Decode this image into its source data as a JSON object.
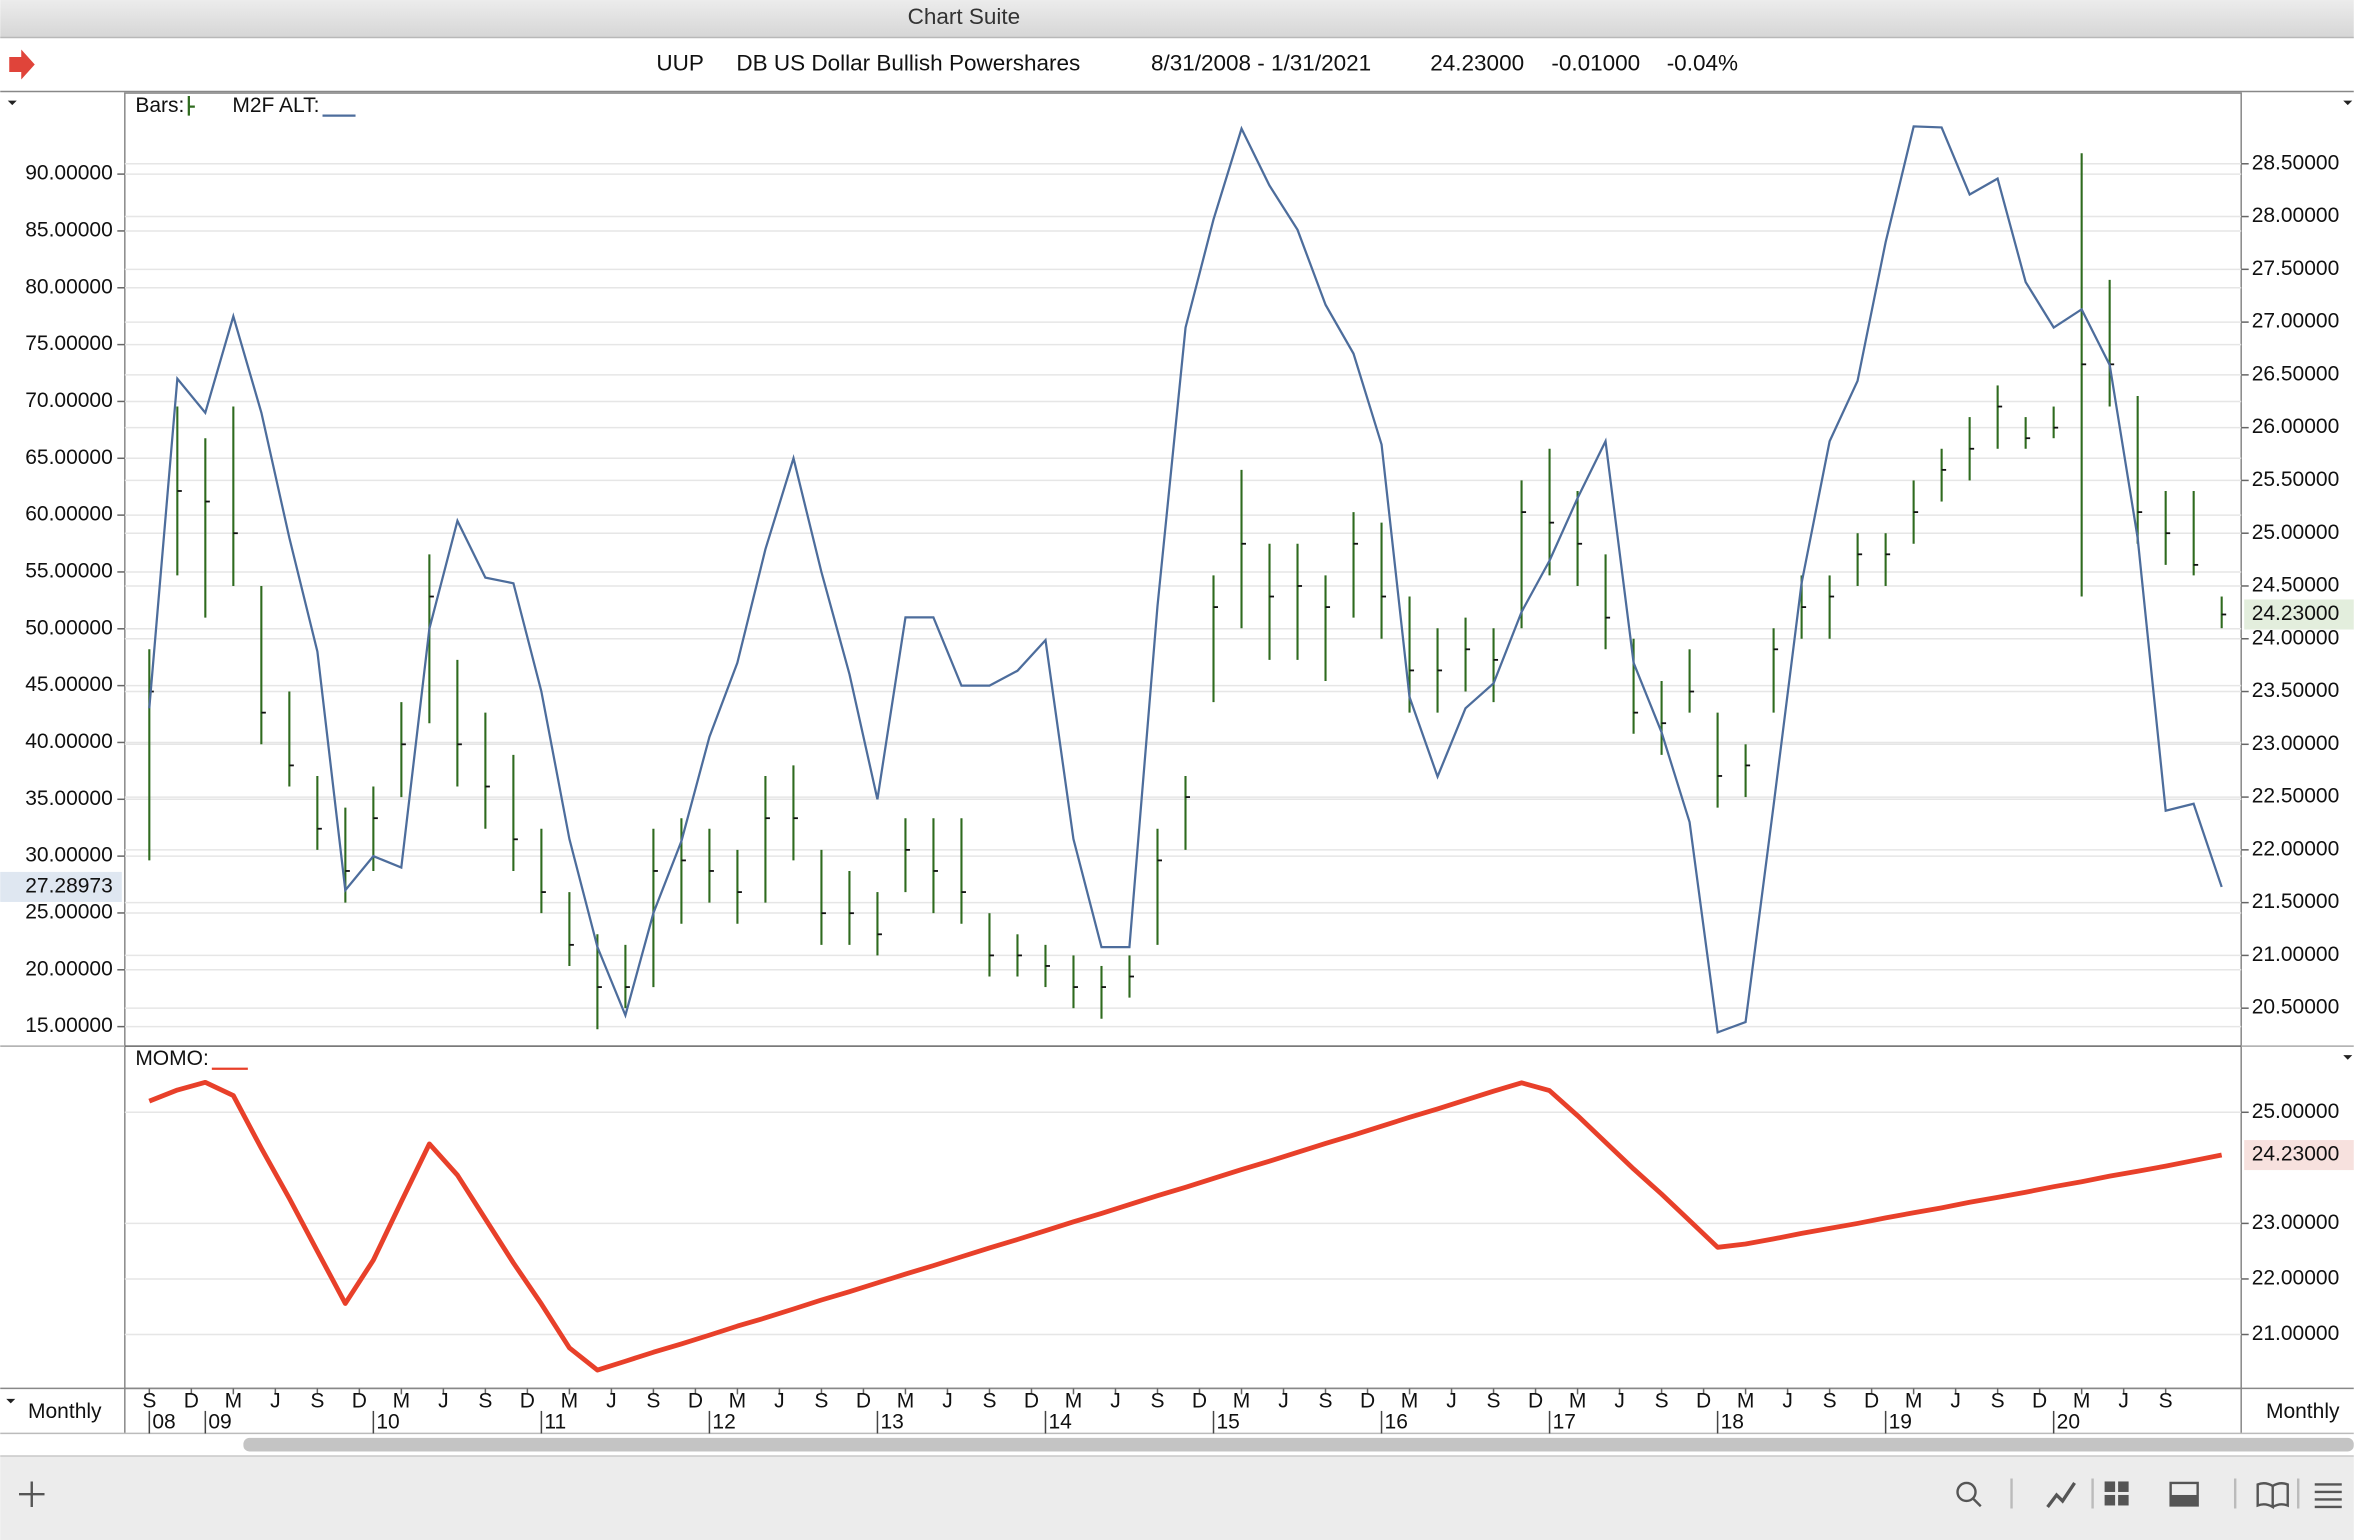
{
  "window": {
    "title": "Chart Suite"
  },
  "header": {
    "symbol": "UUP",
    "name": "DB US Dollar Bullish Powershares",
    "range": "8/31/2008 - 1/31/2021",
    "last": "24.23000",
    "change": "-0.01000",
    "change_pct": "-0.04%"
  },
  "period": "Monthly",
  "chart_data": [
    {
      "type": "ohlc",
      "xlim": [
        "2008-08",
        "2021-01"
      ],
      "x": [
        "2008-09",
        "2008-11",
        "2009-01",
        "2009-03",
        "2009-05",
        "2009-07",
        "2009-09",
        "2009-11",
        "2010-01",
        "2010-03",
        "2010-05",
        "2010-07",
        "2010-09",
        "2010-11",
        "2011-01",
        "2011-03",
        "2011-05",
        "2011-07",
        "2011-09",
        "2011-11",
        "2012-01",
        "2012-03",
        "2012-05",
        "2012-07",
        "2012-09",
        "2012-11",
        "2013-01",
        "2013-03",
        "2013-05",
        "2013-07",
        "2013-09",
        "2013-11",
        "2014-01",
        "2014-03",
        "2014-05",
        "2014-07",
        "2014-09",
        "2014-11",
        "2015-01",
        "2015-03",
        "2015-05",
        "2015-07",
        "2015-09",
        "2015-11",
        "2016-01",
        "2016-03",
        "2016-05",
        "2016-07",
        "2016-09",
        "2016-11",
        "2017-01",
        "2017-03",
        "2017-05",
        "2017-07",
        "2017-09",
        "2017-11",
        "2018-01",
        "2018-03",
        "2018-05",
        "2018-07",
        "2018-09",
        "2018-11",
        "2019-01",
        "2019-03",
        "2019-05",
        "2019-07",
        "2019-09",
        "2019-11",
        "2020-01",
        "2020-03",
        "2020-05",
        "2020-07",
        "2020-09",
        "2020-11",
        "2021-01"
      ],
      "series": [
        {
          "name": "Bars:",
          "color": "#2f6b1f",
          "axis": "y2",
          "last_label": "24.23000",
          "high": [
            23.9,
            26.2,
            25.9,
            26.2,
            24.5,
            23.5,
            22.7,
            22.4,
            22.6,
            23.4,
            24.8,
            23.8,
            23.3,
            22.9,
            22.2,
            21.6,
            21.2,
            21.1,
            22.2,
            22.3,
            22.2,
            22.0,
            22.7,
            22.8,
            22.0,
            21.8,
            21.6,
            22.3,
            22.3,
            22.3,
            21.4,
            21.2,
            21.1,
            21.0,
            20.9,
            21.0,
            22.2,
            22.7,
            24.6,
            25.6,
            24.9,
            24.9,
            24.6,
            25.2,
            25.1,
            24.4,
            24.1,
            24.2,
            24.1,
            25.5,
            25.8,
            25.4,
            24.8,
            24.0,
            23.6,
            23.9,
            23.3,
            23.0,
            24.1,
            24.6,
            24.6,
            25.0,
            25.0,
            25.5,
            25.8,
            26.1,
            26.4,
            26.1,
            26.2,
            28.6,
            27.4,
            26.3,
            25.4,
            25.4,
            24.4
          ],
          "low": [
            21.9,
            24.6,
            24.2,
            24.5,
            23.0,
            22.6,
            22.0,
            21.5,
            21.8,
            22.5,
            23.2,
            22.6,
            22.2,
            21.8,
            21.4,
            20.9,
            20.3,
            20.5,
            20.7,
            21.3,
            21.5,
            21.3,
            21.5,
            21.9,
            21.1,
            21.1,
            21.0,
            21.6,
            21.4,
            21.3,
            20.8,
            20.8,
            20.7,
            20.5,
            20.4,
            20.6,
            21.1,
            22.0,
            23.4,
            24.1,
            23.8,
            23.8,
            23.6,
            24.2,
            24.0,
            23.3,
            23.3,
            23.5,
            23.4,
            24.1,
            24.6,
            24.5,
            23.9,
            23.1,
            22.9,
            23.3,
            22.4,
            22.5,
            23.3,
            24.0,
            24.0,
            24.5,
            24.5,
            24.9,
            25.3,
            25.5,
            25.8,
            25.8,
            25.9,
            24.4,
            26.2,
            24.9,
            24.7,
            24.6,
            24.1
          ],
          "close": [
            23.5,
            25.4,
            25.3,
            25.0,
            23.3,
            22.8,
            22.2,
            21.8,
            22.3,
            23.0,
            24.4,
            23.0,
            22.6,
            22.1,
            21.6,
            21.1,
            20.7,
            20.7,
            21.8,
            21.9,
            21.8,
            21.6,
            22.3,
            22.3,
            21.4,
            21.4,
            21.2,
            22.0,
            21.8,
            21.6,
            21.0,
            21.0,
            20.9,
            20.7,
            20.7,
            20.8,
            21.9,
            22.5,
            24.3,
            24.9,
            24.4,
            24.5,
            24.3,
            24.9,
            24.4,
            23.7,
            23.7,
            23.9,
            23.8,
            25.2,
            25.1,
            24.9,
            24.2,
            23.3,
            23.2,
            23.5,
            22.7,
            22.8,
            23.9,
            24.3,
            24.4,
            24.8,
            24.8,
            25.2,
            25.6,
            25.8,
            26.2,
            25.9,
            26.0,
            26.6,
            26.6,
            25.2,
            25.0,
            24.7,
            24.23
          ]
        },
        {
          "name": "M2F ALT:",
          "color": "#4d6d9c",
          "axis": "y",
          "values": [
            43,
            72,
            69,
            77.5,
            69,
            58,
            48,
            27,
            30,
            29,
            50,
            59.5,
            54.5,
            54,
            44.5,
            31.5,
            22,
            16,
            25,
            31.3,
            40.5,
            47,
            57,
            65,
            55,
            46,
            35,
            51,
            51,
            45,
            45,
            46.3,
            49,
            31.5,
            22,
            22,
            52,
            76.5,
            86,
            94,
            89,
            85.1,
            78.5,
            74.2,
            66.2,
            44,
            37,
            43,
            45.2,
            51.5,
            56,
            61.5,
            66.5,
            47,
            40.9,
            33,
            14.5,
            15.4,
            34.5,
            54,
            66.5,
            71.8,
            84,
            94.2,
            94.1,
            88.2,
            89.6,
            80.5,
            76.5,
            78.1,
            73.2,
            58,
            34,
            34.6,
            27.28973
          ]
        }
      ],
      "ylim": [
        13.28,
        97.13
      ],
      "yticks": [
        {
          "value": 15,
          "label": "15.00000"
        },
        {
          "value": 20,
          "label": "20.00000"
        },
        {
          "value": 25,
          "label": "25.00000"
        },
        {
          "value": 30,
          "label": "30.00000"
        },
        {
          "value": 35,
          "label": "35.00000"
        },
        {
          "value": 40,
          "label": "40.00000"
        },
        {
          "value": 45,
          "label": "45.00000"
        },
        {
          "value": 50,
          "label": "50.00000"
        },
        {
          "value": 55,
          "label": "55.00000"
        },
        {
          "value": 60,
          "label": "60.00000"
        },
        {
          "value": 65,
          "label": "65.00000"
        },
        {
          "value": 70,
          "label": "70.00000"
        },
        {
          "value": 75,
          "label": "75.00000"
        },
        {
          "value": 80,
          "label": "80.00000"
        },
        {
          "value": 85,
          "label": "85.00000"
        },
        {
          "value": 90,
          "label": "90.00000"
        }
      ],
      "y2lim": [
        20.14,
        29.17
      ],
      "y2ticks": [
        {
          "value": 20.5,
          "label": "20.50000"
        },
        {
          "value": 21,
          "label": "21.00000"
        },
        {
          "value": 21.5,
          "label": "21.50000"
        },
        {
          "value": 22,
          "label": "22.00000"
        },
        {
          "value": 22.5,
          "label": "22.50000"
        },
        {
          "value": 23,
          "label": "23.00000"
        },
        {
          "value": 23.5,
          "label": "23.50000"
        },
        {
          "value": 24,
          "label": "24.00000"
        },
        {
          "value": 24.5,
          "label": "24.50000"
        },
        {
          "value": 25,
          "label": "25.00000"
        },
        {
          "value": 25.5,
          "label": "25.50000"
        },
        {
          "value": 26,
          "label": "26.00000"
        },
        {
          "value": 26.5,
          "label": "26.50000"
        },
        {
          "value": 27,
          "label": "27.00000"
        },
        {
          "value": 27.5,
          "label": "27.50000"
        },
        {
          "value": 28,
          "label": "28.00000"
        },
        {
          "value": 28.5,
          "label": "28.50000"
        }
      ],
      "grid": true
    },
    {
      "type": "line",
      "xlim": [
        "2008-08",
        "2021-01"
      ],
      "x": [
        "2008-09",
        "2008-11",
        "2009-01",
        "2009-03",
        "2009-05",
        "2009-07",
        "2009-09",
        "2009-11",
        "2010-01",
        "2010-03",
        "2010-05",
        "2010-07",
        "2010-09",
        "2010-11",
        "2011-01",
        "2011-03",
        "2011-05",
        "2011-07",
        "2011-09",
        "2011-11",
        "2012-01",
        "2012-03",
        "2012-05",
        "2012-07",
        "2012-09",
        "2012-11",
        "2013-01",
        "2013-03",
        "2013-05",
        "2013-07",
        "2013-09",
        "2013-11",
        "2014-01",
        "2014-03",
        "2014-05",
        "2014-07",
        "2014-09",
        "2014-11",
        "2015-01",
        "2015-03",
        "2015-05",
        "2015-07",
        "2015-09",
        "2015-11",
        "2016-01",
        "2016-03",
        "2016-05",
        "2016-07",
        "2016-09",
        "2016-11",
        "2017-01",
        "2017-03",
        "2017-05",
        "2017-07",
        "2017-09",
        "2017-11",
        "2018-01",
        "2018-03",
        "2018-05",
        "2018-07",
        "2018-09",
        "2018-11",
        "2019-01",
        "2019-03",
        "2019-05",
        "2019-07",
        "2019-09",
        "2019-11",
        "2020-01",
        "2020-03",
        "2020-05",
        "2020-07",
        "2020-09",
        "2020-11",
        "2021-01"
      ],
      "series": [
        {
          "name": "MOMO:",
          "color": "#e8402a",
          "axis": "y2",
          "last_label": "24.23000",
          "values": [
            25.2,
            25.4,
            25.54,
            25.3,
            24.35,
            23.45,
            22.5,
            21.56,
            22.34,
            23.39,
            24.43,
            23.87,
            23.08,
            22.29,
            21.55,
            20.76,
            20.36,
            20.52,
            20.68,
            20.83,
            20.99,
            21.15,
            21.3,
            21.46,
            21.62,
            21.77,
            21.93,
            22.09,
            22.24,
            22.4,
            22.56,
            22.71,
            22.87,
            23.03,
            23.18,
            23.34,
            23.5,
            23.65,
            23.81,
            23.97,
            24.12,
            24.28,
            24.44,
            24.59,
            24.75,
            24.91,
            25.06,
            25.22,
            25.38,
            25.53,
            25.39,
            24.94,
            24.46,
            23.98,
            23.53,
            23.05,
            22.57,
            22.63,
            22.72,
            22.82,
            22.91,
            23.0,
            23.1,
            23.19,
            23.28,
            23.38,
            23.47,
            23.56,
            23.66,
            23.75,
            23.85,
            23.94,
            24.03,
            24.13,
            24.23
          ]
        }
      ],
      "y2lim": [
        20.03,
        26.19
      ],
      "y2ticks": [
        {
          "value": 21,
          "label": "21.00000"
        },
        {
          "value": 22,
          "label": "22.00000"
        },
        {
          "value": 23,
          "label": "23.00000"
        },
        {
          "value": 25,
          "label": "25.00000"
        }
      ],
      "grid": true,
      "xticks": [
        {
          "value": "2008-09",
          "label": "S"
        },
        {
          "value": "2008-12",
          "label": "D"
        },
        {
          "value": "2009-03",
          "label": "M"
        },
        {
          "value": "2009-06",
          "label": "J"
        },
        {
          "value": "2009-09",
          "label": "S"
        },
        {
          "value": "2009-12",
          "label": "D"
        },
        {
          "value": "2010-03",
          "label": "M"
        },
        {
          "value": "2010-06",
          "label": "J"
        },
        {
          "value": "2010-09",
          "label": "S"
        },
        {
          "value": "2010-12",
          "label": "D"
        },
        {
          "value": "2011-03",
          "label": "M"
        },
        {
          "value": "2011-06",
          "label": "J"
        },
        {
          "value": "2011-09",
          "label": "S"
        },
        {
          "value": "2011-12",
          "label": "D"
        },
        {
          "value": "2012-03",
          "label": "M"
        },
        {
          "value": "2012-06",
          "label": "J"
        },
        {
          "value": "2012-09",
          "label": "S"
        },
        {
          "value": "2012-12",
          "label": "D"
        },
        {
          "value": "2013-03",
          "label": "M"
        },
        {
          "value": "2013-06",
          "label": "J"
        },
        {
          "value": "2013-09",
          "label": "S"
        },
        {
          "value": "2013-12",
          "label": "D"
        },
        {
          "value": "2014-03",
          "label": "M"
        },
        {
          "value": "2014-06",
          "label": "J"
        },
        {
          "value": "2014-09",
          "label": "S"
        },
        {
          "value": "2014-12",
          "label": "D"
        },
        {
          "value": "2015-03",
          "label": "M"
        },
        {
          "value": "2015-06",
          "label": "J"
        },
        {
          "value": "2015-09",
          "label": "S"
        },
        {
          "value": "2015-12",
          "label": "D"
        },
        {
          "value": "2016-03",
          "label": "M"
        },
        {
          "value": "2016-06",
          "label": "J"
        },
        {
          "value": "2016-09",
          "label": "S"
        },
        {
          "value": "2016-12",
          "label": "D"
        },
        {
          "value": "2017-03",
          "label": "M"
        },
        {
          "value": "2017-06",
          "label": "J"
        },
        {
          "value": "2017-09",
          "label": "S"
        },
        {
          "value": "2017-12",
          "label": "D"
        },
        {
          "value": "2018-03",
          "label": "M"
        },
        {
          "value": "2018-06",
          "label": "J"
        },
        {
          "value": "2018-09",
          "label": "S"
        },
        {
          "value": "2018-12",
          "label": "D"
        },
        {
          "value": "2019-03",
          "label": "M"
        },
        {
          "value": "2019-06",
          "label": "J"
        },
        {
          "value": "2019-09",
          "label": "S"
        },
        {
          "value": "2019-12",
          "label": "D"
        },
        {
          "value": "2020-03",
          "label": "M"
        },
        {
          "value": "2020-06",
          "label": "J"
        },
        {
          "value": "2020-09",
          "label": "S"
        }
      ],
      "xticks_major": [
        {
          "value": "2008-09",
          "label": "08"
        },
        {
          "value": "2009-01",
          "label": "09"
        },
        {
          "value": "2010-01",
          "label": "10"
        },
        {
          "value": "2011-01",
          "label": "11"
        },
        {
          "value": "2012-01",
          "label": "12"
        },
        {
          "value": "2013-01",
          "label": "13"
        },
        {
          "value": "2014-01",
          "label": "14"
        },
        {
          "value": "2015-01",
          "label": "15"
        },
        {
          "value": "2016-01",
          "label": "16"
        },
        {
          "value": "2017-01",
          "label": "17"
        },
        {
          "value": "2018-01",
          "label": "18"
        },
        {
          "value": "2019-01",
          "label": "19"
        },
        {
          "value": "2020-01",
          "label": "20"
        }
      ]
    }
  ]
}
